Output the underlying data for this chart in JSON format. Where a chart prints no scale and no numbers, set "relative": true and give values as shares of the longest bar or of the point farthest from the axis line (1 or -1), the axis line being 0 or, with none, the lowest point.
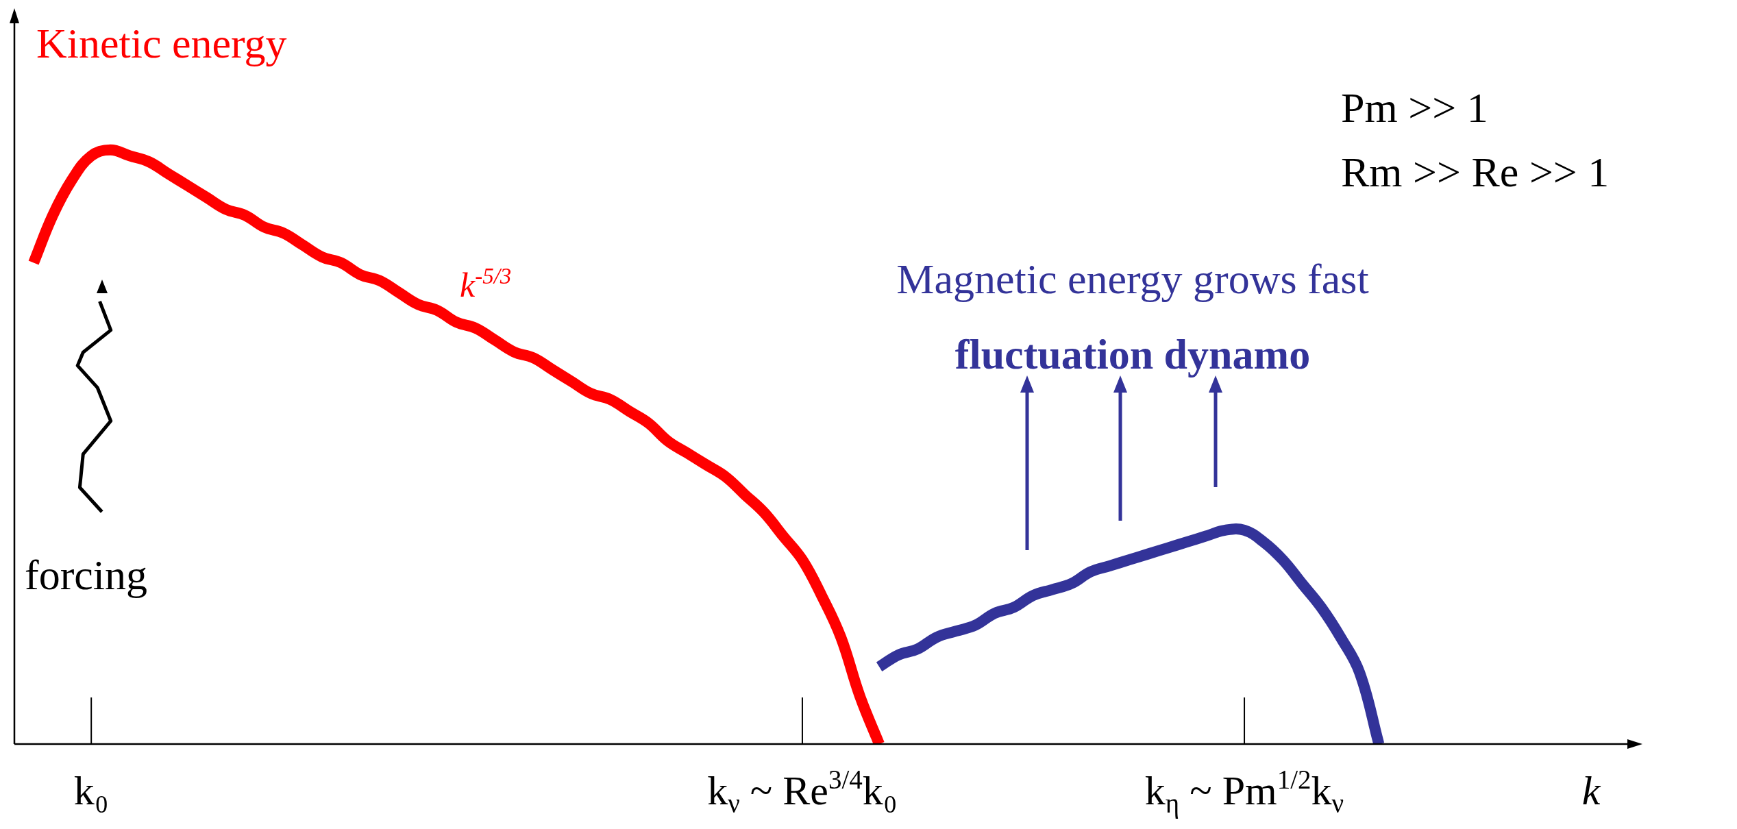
{
  "chart_data": {
    "type": "line",
    "relative": true,
    "xlabel": "k",
    "categories": [
      null,
      null,
      null,
      null,
      "k₀",
      null,
      null,
      null,
      null,
      null,
      null,
      null,
      null,
      null,
      null,
      null,
      null,
      null,
      null,
      null,
      null,
      null,
      null,
      null,
      null,
      null,
      null,
      null,
      null,
      null,
      null,
      null,
      null,
      null,
      null,
      null,
      null,
      null,
      null,
      null,
      null,
      "k$_{ν}$ ~ Re$^{3/4}$k₀",
      null,
      null,
      null,
      null,
      null,
      null,
      null,
      null,
      null,
      null,
      null,
      null,
      null,
      null,
      null,
      null,
      null,
      null,
      null,
      null,
      null,
      null,
      "k$_{η}$ ~ Pm$^{1/2}$k$_{ν}$",
      null,
      null,
      null,
      null,
      null,
      null,
      null,
      null,
      null,
      null,
      null,
      null,
      null,
      null,
      null,
      null,
      null,
      null,
      null,
      null
    ],
    "series": [
      {
        "name": "Kinetic energy",
        "color": "#ff0000",
        "values": [
          null,
          0.81,
          0.89,
          0.95,
          0.99,
          1.0,
          0.99,
          0.98,
          0.96,
          0.94,
          0.92,
          0.9,
          0.89,
          0.87,
          0.86,
          0.84,
          0.82,
          0.81,
          0.79,
          0.78,
          0.76,
          0.74,
          0.73,
          0.71,
          0.7,
          0.68,
          0.66,
          0.65,
          0.63,
          0.61,
          0.59,
          0.58,
          0.56,
          0.54,
          0.51,
          0.49,
          0.47,
          0.45,
          0.42,
          0.39,
          0.35,
          0.31,
          0.25,
          0.18,
          0.08,
          0,
          null,
          null,
          null,
          null,
          null,
          null,
          null,
          null,
          null,
          null,
          null,
          null,
          null,
          null,
          null,
          null,
          null,
          null,
          null,
          null,
          null,
          null,
          null,
          null,
          null,
          null,
          null,
          null,
          null,
          null,
          null,
          null,
          null,
          null,
          null,
          null,
          null,
          null,
          null
        ]
      },
      {
        "name": "Magnetic energy grows fast",
        "color": "#333399",
        "values": [
          null,
          null,
          null,
          null,
          null,
          null,
          null,
          null,
          null,
          null,
          null,
          null,
          null,
          null,
          null,
          null,
          null,
          null,
          null,
          null,
          null,
          null,
          null,
          null,
          null,
          null,
          null,
          null,
          null,
          null,
          null,
          null,
          null,
          null,
          null,
          null,
          null,
          null,
          null,
          null,
          null,
          null,
          null,
          null,
          null,
          0.13,
          0.15,
          0.16,
          0.18,
          0.19,
          0.2,
          0.22,
          0.23,
          0.25,
          0.26,
          0.27,
          0.29,
          0.3,
          0.31,
          0.32,
          0.33,
          0.34,
          0.35,
          0.36,
          0.36,
          0.34,
          0.31,
          0.27,
          0.23,
          0.18,
          0.12,
          0,
          null,
          null,
          null,
          null,
          null,
          null,
          null,
          null,
          null,
          null,
          null,
          null,
          null
        ]
      }
    ],
    "annotations": [
      "k$^{-5/3}$",
      "fluctuation dynamo",
      "forcing",
      "Pm >> 1",
      "Rm >> Re >> 1"
    ]
  }
}
